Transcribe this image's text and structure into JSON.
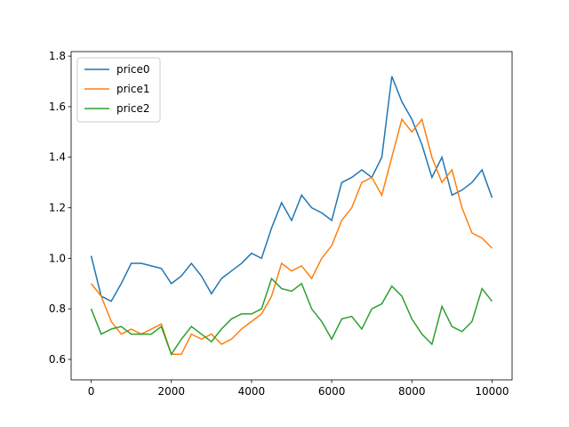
{
  "chart_data": {
    "type": "line",
    "x": [
      0,
      250,
      500,
      750,
      1000,
      1250,
      1500,
      1750,
      2000,
      2250,
      2500,
      2750,
      3000,
      3250,
      3500,
      3750,
      4000,
      4250,
      4500,
      4750,
      5000,
      5250,
      5500,
      5750,
      6000,
      6250,
      6500,
      6750,
      7000,
      7250,
      7500,
      7750,
      8000,
      8250,
      8500,
      8750,
      9000,
      9250,
      9500,
      9750,
      10000
    ],
    "series": [
      {
        "name": "price0",
        "color": "#1f77b4",
        "values": [
          1.01,
          0.85,
          0.83,
          0.9,
          0.98,
          0.98,
          0.97,
          0.96,
          0.9,
          0.93,
          0.98,
          0.93,
          0.86,
          0.92,
          0.95,
          0.98,
          1.02,
          1.0,
          1.12,
          1.22,
          1.15,
          1.25,
          1.2,
          1.18,
          1.15,
          1.3,
          1.32,
          1.35,
          1.32,
          1.4,
          1.72,
          1.62,
          1.55,
          1.45,
          1.32,
          1.4,
          1.25,
          1.27,
          1.3,
          1.35,
          1.24
        ]
      },
      {
        "name": "price1",
        "color": "#ff7f0e",
        "values": [
          0.9,
          0.85,
          0.75,
          0.7,
          0.72,
          0.7,
          0.72,
          0.74,
          0.62,
          0.62,
          0.7,
          0.68,
          0.7,
          0.66,
          0.68,
          0.72,
          0.75,
          0.78,
          0.85,
          0.98,
          0.95,
          0.97,
          0.92,
          1.0,
          1.05,
          1.15,
          1.2,
          1.3,
          1.32,
          1.25,
          1.4,
          1.55,
          1.5,
          1.55,
          1.4,
          1.3,
          1.35,
          1.2,
          1.1,
          1.08,
          1.04
        ]
      },
      {
        "name": "price2",
        "color": "#2ca02c",
        "values": [
          0.8,
          0.7,
          0.72,
          0.73,
          0.7,
          0.7,
          0.7,
          0.73,
          0.62,
          0.68,
          0.73,
          0.7,
          0.67,
          0.72,
          0.76,
          0.78,
          0.78,
          0.8,
          0.92,
          0.88,
          0.87,
          0.9,
          0.8,
          0.75,
          0.68,
          0.76,
          0.77,
          0.72,
          0.8,
          0.82,
          0.89,
          0.85,
          0.76,
          0.7,
          0.66,
          0.81,
          0.73,
          0.71,
          0.75,
          0.88,
          0.83
        ]
      }
    ],
    "xlim": [
      -500,
      10500
    ],
    "ylim": [
      0.519,
      1.818
    ],
    "xticks": [
      0,
      2000,
      4000,
      6000,
      8000,
      10000
    ],
    "yticks": [
      0.6,
      0.8,
      {
        "value": 1,
        "label": "1.0"
      },
      1.2,
      1.4,
      1.6,
      1.8
    ],
    "legend": "upper left",
    "grid": false
  }
}
